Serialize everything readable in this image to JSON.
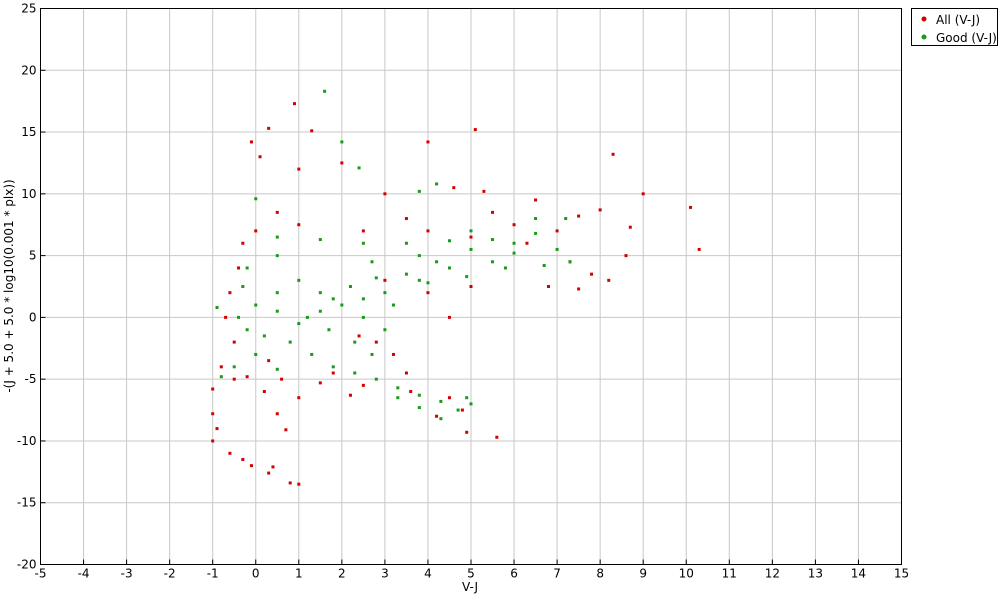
{
  "chart_data": {
    "type": "scatter",
    "x_label": "V-J",
    "y_label": "-(J + 5.0 + 5.0 * log10(0.001 * plx))",
    "xlim": [
      -5,
      15
    ],
    "ylim": [
      -20,
      25
    ],
    "xticks": [
      -5,
      -4,
      -3,
      -2,
      -1,
      0,
      1,
      2,
      3,
      4,
      5,
      6,
      7,
      8,
      9,
      10,
      11,
      12,
      13,
      14,
      15
    ],
    "yticks": [
      -20,
      -15,
      -10,
      -5,
      0,
      5,
      10,
      15,
      20,
      25
    ],
    "grid": true,
    "legend": "outside-top-right",
    "series": [
      {
        "name": "All (V-J)",
        "color": "#d40000",
        "x": [
          0.9,
          0.3,
          1.3,
          4,
          5.1,
          8.3,
          9,
          10.1,
          10.3,
          8.7,
          8.6,
          8,
          -0.1,
          0.1,
          1,
          2,
          3,
          4.6,
          5.3,
          6.5,
          7.5,
          6,
          4,
          2.5,
          1,
          0,
          -0.3,
          0.5,
          3.5,
          5,
          7.3,
          7.8,
          7.5,
          8.2,
          6.8,
          5,
          4,
          4.5,
          3.2,
          2.8,
          3.5,
          4.5,
          4.8,
          5.6,
          4.9,
          4.2,
          3.6,
          2.5,
          1.5,
          1,
          0.5,
          0.7,
          0.2,
          -0.5,
          -1,
          -1,
          -0.9,
          -1,
          -0.6,
          -0.3,
          -0.1,
          0.4,
          0.3,
          0.8,
          1,
          -0.8,
          -0.5,
          -0.7,
          -0.6,
          -0.4,
          0.3,
          1.8,
          2.2,
          0.6,
          -0.2,
          6.3,
          7,
          5.5,
          3,
          2.4
        ],
        "values": [
          17.3,
          15.3,
          15.1,
          14.2,
          15.2,
          13.2,
          10,
          8.9,
          5.5,
          7.3,
          5,
          8.7,
          14.2,
          13,
          12,
          12.5,
          10,
          10.5,
          10.2,
          9.5,
          8.2,
          7.5,
          7,
          7,
          7.5,
          7,
          6,
          8.5,
          8,
          6.5,
          4.5,
          3.5,
          2.3,
          3,
          2.5,
          2.5,
          2,
          0,
          -3,
          -2,
          -4.5,
          -6.5,
          -7.5,
          -9.7,
          -9.3,
          -8,
          -6,
          -5.5,
          -5.3,
          -6.5,
          -7.8,
          -9.1,
          -6,
          -5,
          -5.8,
          -7.8,
          -9,
          -10,
          -11,
          -11.5,
          -12,
          -12.1,
          -12.6,
          -13.4,
          -13.5,
          -4,
          -2,
          0,
          2,
          4,
          -3.5,
          -4.5,
          -6.3,
          -5,
          -4.8,
          6,
          7,
          8.5,
          3,
          -1.5
        ]
      },
      {
        "name": "Good (V-J)",
        "color": "#1a9a1a",
        "x": [
          0,
          1.6,
          2,
          2.4,
          3.8,
          4.2,
          7.2,
          6.5,
          5,
          6,
          7,
          7.3,
          6.7,
          5.5,
          4.5,
          3.8,
          3,
          2.5,
          2,
          1.5,
          1.2,
          1.8,
          3.5,
          4.2,
          5,
          6,
          2.2,
          2.8,
          1,
          0.5,
          0,
          -0.4,
          -0.2,
          0.2,
          0.8,
          1.3,
          1.8,
          2.3,
          2.8,
          3.3,
          3.8,
          4.3,
          4.7,
          4.3,
          3.8,
          3.3,
          2.7,
          2.3,
          3,
          2.5,
          0.5,
          -0.2,
          0.5,
          1.5,
          2.5,
          3.5,
          4.5,
          0,
          -0.5,
          -0.8,
          -0.9,
          -0.3,
          1,
          1.7,
          0.5,
          3.2,
          4,
          4.9,
          5,
          0.5,
          1.5,
          2.7,
          3.8,
          5.5,
          6.5,
          4.9,
          5.8
        ],
        "values": [
          9.6,
          18.3,
          14.2,
          12.1,
          10.2,
          10.8,
          8,
          8,
          7,
          6,
          5.5,
          4.5,
          4.2,
          4.5,
          4,
          3,
          2,
          1.5,
          1,
          0.5,
          0,
          1.5,
          3.5,
          4.5,
          5.5,
          5.2,
          2.5,
          3.2,
          3,
          2,
          1,
          0,
          -1,
          -1.5,
          -2,
          -3,
          -4,
          -4.5,
          -5,
          -5.7,
          -6.3,
          -6.8,
          -7.5,
          -8.2,
          -7.3,
          -6.5,
          -3,
          -2,
          -1,
          0,
          5,
          4,
          6.5,
          6.3,
          6,
          6,
          6.2,
          -3,
          -4,
          -4.8,
          0.8,
          2.5,
          -0.5,
          -1,
          0.5,
          1,
          2.8,
          -6.5,
          -7,
          -4.2,
          2,
          4.5,
          5,
          6.3,
          6.8,
          3.3,
          4
        ]
      }
    ]
  }
}
